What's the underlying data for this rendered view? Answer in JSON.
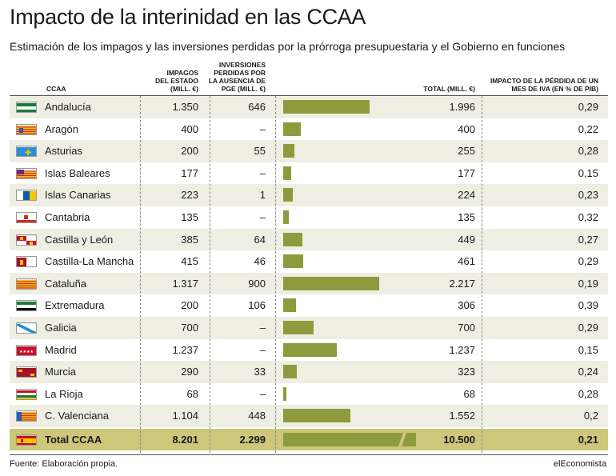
{
  "title": "Impacto de la interinidad en las CCAA",
  "subtitle": "Estimación de los impagos y las inversiones perdidas por la prórroga presupuestaria y el Gobierno en funciones",
  "source": "Fuente: Elaboración propia.",
  "brand": "elEconomista",
  "headers": {
    "ccaa": "CCAA",
    "impagos": [
      "IMPAGOS",
      "DEL ESTADO",
      "(MILL. €)"
    ],
    "inversiones": [
      "INVERSIONES",
      "PERDIDAS POR",
      "LA AUSENCIA DE",
      "PGE (MILL. €)"
    ],
    "total": "TOTAL (MILL. €)",
    "impacto": [
      "IMPACTO DE LA PÉRDIDA DE UN",
      "MES DE IVA (EN % DE PIB)"
    ]
  },
  "colors": {
    "bar": "#8e9b3c",
    "row_alt": "#eeeee3",
    "total_row": "#ccc77a"
  },
  "chart_data": {
    "type": "table",
    "columns": [
      "CCAA",
      "IMPAGOS DEL ESTADO (MILL. €)",
      "INVERSIONES PERDIDAS POR LA AUSENCIA DE PGE (MILL. €)",
      "TOTAL (MILL. €)",
      "IMPACTO DE LA PÉRDIDA DE UN MES DE IVA (EN % DE PIB)"
    ],
    "bar_column": "TOTAL (MILL. €)",
    "bar_max": 2300,
    "rows": [
      {
        "ccaa": "Andalucía",
        "flag": "andalucia-flag",
        "impagos": "1.350",
        "inversiones": "646",
        "total": "1.996",
        "total_value": 1996,
        "impacto": "0,29"
      },
      {
        "ccaa": "Aragón",
        "flag": "aragon-flag",
        "impagos": "400",
        "inversiones": "–",
        "total": "400",
        "total_value": 400,
        "impacto": "0,22"
      },
      {
        "ccaa": "Asturias",
        "flag": "asturias-flag",
        "impagos": "200",
        "inversiones": "55",
        "total": "255",
        "total_value": 255,
        "impacto": "0,28"
      },
      {
        "ccaa": "Islas Baleares",
        "flag": "baleares-flag",
        "impagos": "177",
        "inversiones": "–",
        "total": "177",
        "total_value": 177,
        "impacto": "0,15"
      },
      {
        "ccaa": "Islas Canarias",
        "flag": "canarias-flag",
        "impagos": "223",
        "inversiones": "1",
        "total": "224",
        "total_value": 224,
        "impacto": "0,23"
      },
      {
        "ccaa": "Cantabria",
        "flag": "cantabria-flag",
        "impagos": "135",
        "inversiones": "–",
        "total": "135",
        "total_value": 135,
        "impacto": "0,32"
      },
      {
        "ccaa": "Castilla y León",
        "flag": "castilla-leon-flag",
        "impagos": "385",
        "inversiones": "64",
        "total": "449",
        "total_value": 449,
        "impacto": "0,27"
      },
      {
        "ccaa": "Castilla-La Mancha",
        "flag": "castilla-mancha-flag",
        "impagos": "415",
        "inversiones": "46",
        "total": "461",
        "total_value": 461,
        "impacto": "0,29"
      },
      {
        "ccaa": "Cataluña",
        "flag": "cataluna-flag",
        "impagos": "1.317",
        "inversiones": "900",
        "total": "2.217",
        "total_value": 2217,
        "impacto": "0,19"
      },
      {
        "ccaa": "Extremadura",
        "flag": "extremadura-flag",
        "impagos": "200",
        "inversiones": "106",
        "total": "306",
        "total_value": 306,
        "impacto": "0,39"
      },
      {
        "ccaa": "Galicia",
        "flag": "galicia-flag",
        "impagos": "700",
        "inversiones": "–",
        "total": "700",
        "total_value": 700,
        "impacto": "0,29"
      },
      {
        "ccaa": "Madrid",
        "flag": "madrid-flag",
        "impagos": "1.237",
        "inversiones": "–",
        "total": "1.237",
        "total_value": 1237,
        "impacto": "0,15"
      },
      {
        "ccaa": "Murcia",
        "flag": "murcia-flag",
        "impagos": "290",
        "inversiones": "33",
        "total": "323",
        "total_value": 323,
        "impacto": "0,24"
      },
      {
        "ccaa": "La Rioja",
        "flag": "rioja-flag",
        "impagos": "68",
        "inversiones": "–",
        "total": "68",
        "total_value": 68,
        "impacto": "0,28"
      },
      {
        "ccaa": "C. Valenciana",
        "flag": "valenciana-flag",
        "impagos": "1.104",
        "inversiones": "448",
        "total": "1.552",
        "total_value": 1552,
        "impacto": "0,2"
      }
    ],
    "total_row": {
      "ccaa": "Total CCAA",
      "flag": "espana-flag",
      "impagos": "8.201",
      "inversiones": "2.299",
      "total": "10.500",
      "total_value": 10500,
      "impacto": "0,21",
      "bar_truncated": true
    }
  }
}
